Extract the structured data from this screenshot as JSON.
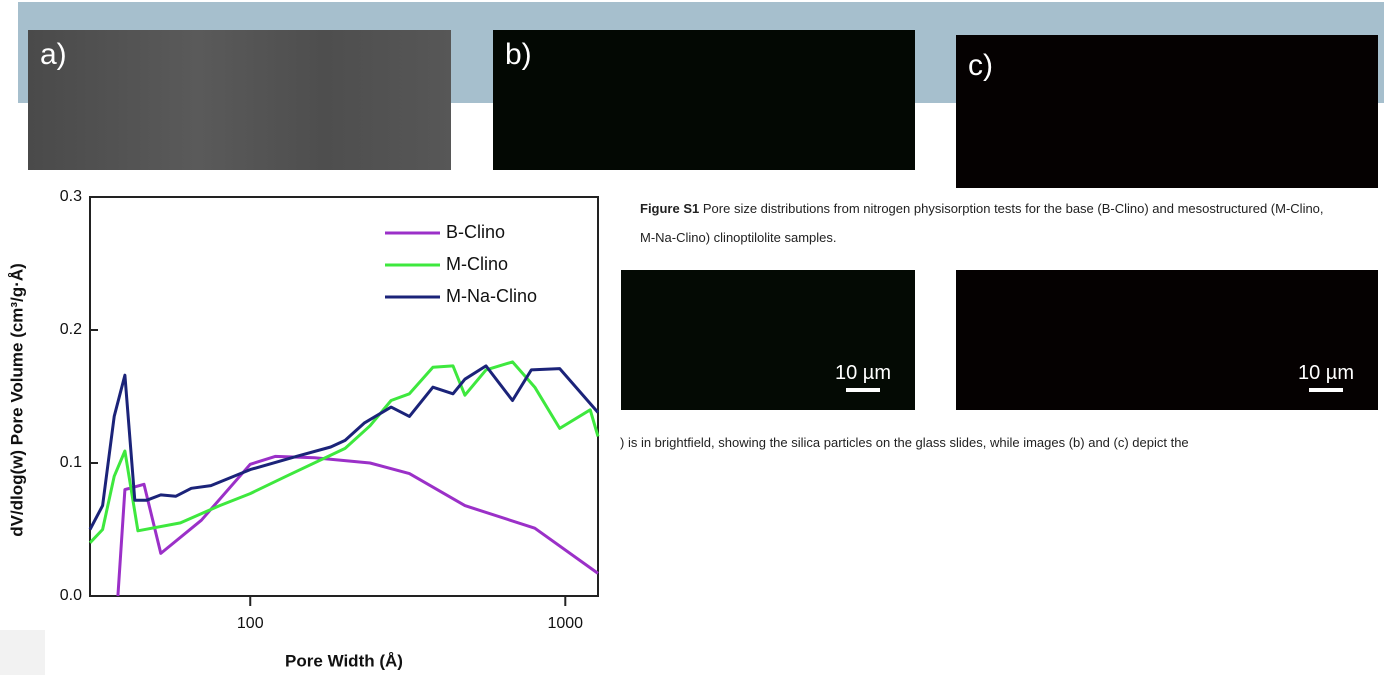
{
  "panels": [
    {
      "label": "a)"
    },
    {
      "label": "b)"
    },
    {
      "label": "c)"
    }
  ],
  "scale_bars": [
    "10 µm",
    "10 µm"
  ],
  "caption": {
    "label": "Figure S1",
    "text": "Pore size distributions from nitrogen physisorption tests for the base (B-Clino) and mesostructured (M-Clino, M-Na-Clino) clinoptilolite samples."
  },
  "body_text": ") is in brightfield, showing the silica particles on the glass slides, while images (b) and (c) depict the",
  "chart_data": {
    "type": "line",
    "x_label": "Pore Width (Å)",
    "y_label": "dV/dlog(w) Pore Volume (cm³/g·Å)",
    "log_x": true,
    "xlim": [
      31,
      1270
    ],
    "ylim": [
      0,
      0.3
    ],
    "xticks": [
      100,
      1000
    ],
    "yticks": [
      {
        "value": 0,
        "label": "0.0"
      },
      0.1,
      0.2,
      0.3
    ],
    "legend": "upper right",
    "series": [
      {
        "name": "B-Clino",
        "color": "#9b30c8",
        "x": [
          38,
          40,
          46,
          52,
          70,
          100,
          120,
          160,
          240,
          320,
          480,
          800,
          1270
        ],
        "values": [
          0,
          0.08,
          0.084,
          0.032,
          0.057,
          0.099,
          0.105,
          0.104,
          0.1,
          0.092,
          0.068,
          0.051,
          0.017
        ]
      },
      {
        "name": "M-Clino",
        "color": "#3ee83e",
        "x": [
          31,
          34,
          37,
          40,
          44,
          60,
          80,
          100,
          130,
          200,
          240,
          280,
          320,
          380,
          440,
          480,
          560,
          680,
          800,
          960,
          1200,
          1270
        ],
        "values": [
          0.04,
          0.05,
          0.09,
          0.109,
          0.049,
          0.055,
          0.068,
          0.077,
          0.09,
          0.111,
          0.128,
          0.147,
          0.152,
          0.172,
          0.173,
          0.151,
          0.17,
          0.176,
          0.157,
          0.126,
          0.14,
          0.12
        ]
      },
      {
        "name": "M-Na-Clino",
        "color": "#1b2379",
        "x": [
          31,
          34,
          37,
          40,
          43,
          47,
          52,
          58,
          65,
          75,
          100,
          140,
          180,
          200,
          230,
          280,
          320,
          380,
          440,
          480,
          560,
          680,
          780,
          960,
          1270
        ],
        "values": [
          0.05,
          0.068,
          0.135,
          0.166,
          0.072,
          0.072,
          0.076,
          0.075,
          0.081,
          0.083,
          0.095,
          0.105,
          0.112,
          0.117,
          0.13,
          0.142,
          0.135,
          0.157,
          0.152,
          0.163,
          0.173,
          0.147,
          0.17,
          0.171,
          0.138
        ]
      }
    ]
  }
}
